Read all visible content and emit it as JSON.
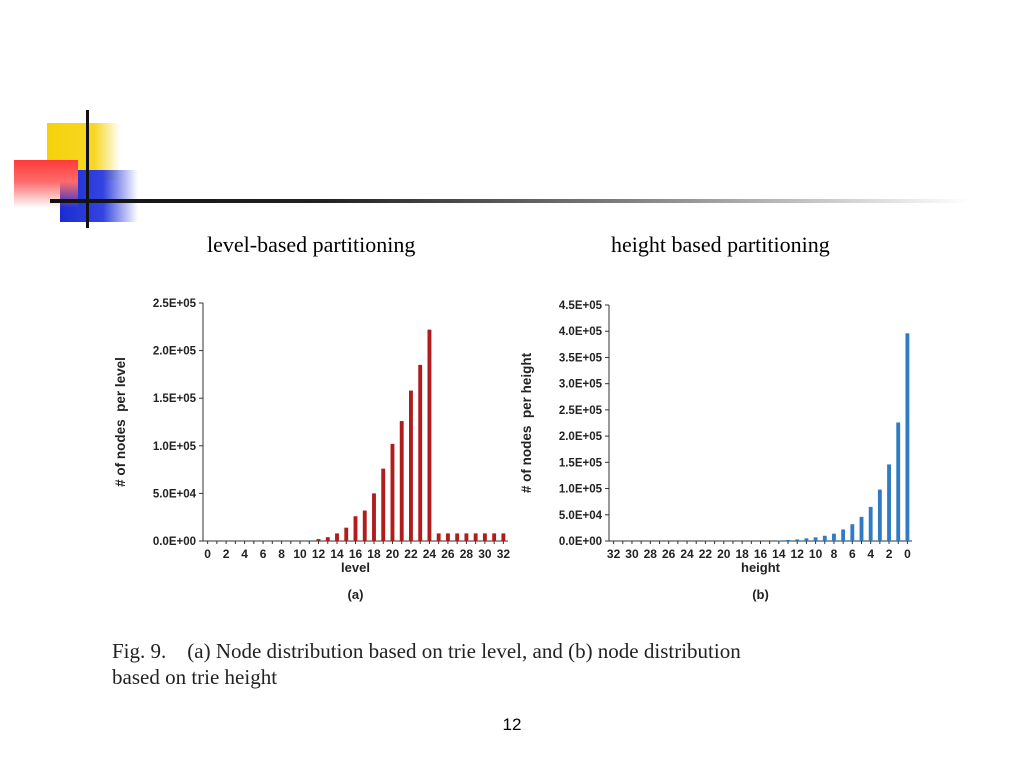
{
  "slide": {
    "heading_left": "level-based partitioning",
    "heading_right": "height based partitioning",
    "caption_line1": "Fig. 9.    (a) Node distribution based on trie level, and (b) node distribution",
    "caption_line2": "based on trie height",
    "page_number": "12"
  },
  "colors": {
    "series_a": "#b01c1c",
    "series_b": "#2f7cc2",
    "accent_yellow": "#f5d20a",
    "accent_blue": "#1c2bd0",
    "accent_red": "#ff3a3a"
  },
  "chart_data": [
    {
      "type": "bar",
      "panel_label": "(a)",
      "xlabel": "level",
      "ylabel": "# of nodes  per level",
      "ylim": [
        0,
        250000
      ],
      "yticks": [
        "0.0E+00",
        "5.0E+04",
        "1.0E+05",
        "1.5E+05",
        "2.0E+05",
        "2.5E+05"
      ],
      "ytick_values": [
        0,
        50000,
        100000,
        150000,
        200000,
        250000
      ],
      "categories": [
        "0",
        "1",
        "2",
        "3",
        "4",
        "5",
        "6",
        "7",
        "8",
        "9",
        "10",
        "11",
        "12",
        "13",
        "14",
        "15",
        "16",
        "17",
        "18",
        "19",
        "20",
        "21",
        "22",
        "23",
        "24",
        "25",
        "26",
        "27",
        "28",
        "29",
        "30",
        "31",
        "32"
      ],
      "xtick_labels": [
        "0",
        "2",
        "4",
        "6",
        "8",
        "10",
        "12",
        "14",
        "16",
        "18",
        "20",
        "22",
        "24",
        "26",
        "28",
        "30",
        "32"
      ],
      "values": [
        0,
        0,
        0,
        0,
        0,
        0,
        0,
        0,
        0,
        0,
        0,
        0,
        2000,
        4000,
        8000,
        14000,
        26000,
        32000,
        50000,
        76000,
        102000,
        126000,
        158000,
        185000,
        222000,
        8000,
        8000,
        8000,
        8000,
        8000,
        8000,
        8000,
        8000
      ],
      "grid": false
    },
    {
      "type": "bar",
      "panel_label": "(b)",
      "xlabel": "height",
      "ylabel": "# of nodes  per height",
      "ylim": [
        0,
        450000
      ],
      "yticks": [
        "0.0E+00",
        "5.0E+04",
        "1.0E+05",
        "1.5E+05",
        "2.0E+05",
        "2.5E+05",
        "3.0E+05",
        "3.5E+05",
        "4.0E+05",
        "4.5E+05"
      ],
      "ytick_values": [
        0,
        50000,
        100000,
        150000,
        200000,
        250000,
        300000,
        350000,
        400000,
        450000
      ],
      "categories": [
        "32",
        "31",
        "30",
        "29",
        "28",
        "27",
        "26",
        "25",
        "24",
        "23",
        "22",
        "21",
        "20",
        "19",
        "18",
        "17",
        "16",
        "15",
        "14",
        "13",
        "12",
        "11",
        "10",
        "9",
        "8",
        "7",
        "6",
        "5",
        "4",
        "3",
        "2",
        "1",
        "0"
      ],
      "xtick_labels": [
        "32",
        "30",
        "28",
        "26",
        "24",
        "22",
        "20",
        "18",
        "16",
        "14",
        "12",
        "10",
        "8",
        "6",
        "4",
        "2",
        "0"
      ],
      "values": [
        0,
        0,
        0,
        0,
        0,
        0,
        0,
        0,
        0,
        0,
        0,
        0,
        0,
        0,
        0,
        0,
        0,
        0,
        1000,
        2000,
        3000,
        5000,
        7000,
        10000,
        14000,
        22000,
        32000,
        46000,
        65000,
        98000,
        146000,
        226000,
        396000
      ],
      "grid": false
    }
  ]
}
